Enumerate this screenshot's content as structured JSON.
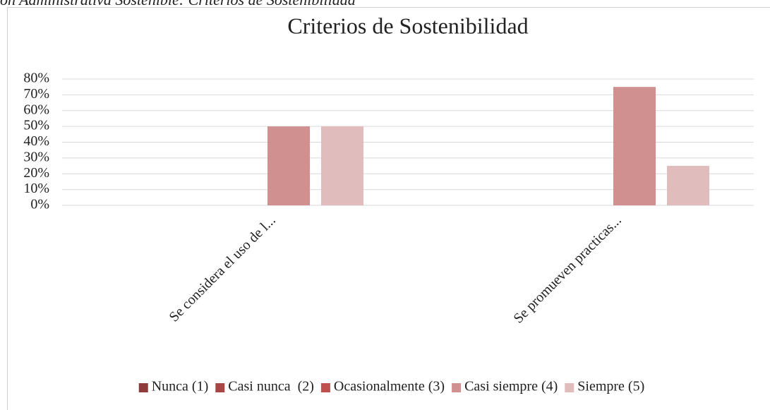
{
  "caption": "ón Administrativa Sostenible: Criterios de Sostenibilidad",
  "chart_data": {
    "type": "bar",
    "title": "Criterios de Sostenibilidad",
    "categories": [
      "Se considera el uso de l...",
      "Se promueven practicas..."
    ],
    "series": [
      {
        "name": "Nunca (1)",
        "color": "#8e3b3b",
        "values": [
          0,
          0
        ]
      },
      {
        "name": "Casi nunca  (2)",
        "color": "#a84545",
        "values": [
          0,
          0
        ]
      },
      {
        "name": "Ocasionalmente (3)",
        "color": "#c0504d",
        "values": [
          0,
          0
        ]
      },
      {
        "name": "Casi siempre (4)",
        "color": "#d09090",
        "values": [
          50,
          75
        ]
      },
      {
        "name": "Siempre (5)",
        "color": "#e0bcbc",
        "values": [
          50,
          25
        ]
      }
    ],
    "ylim": [
      0,
      80
    ],
    "yticks": [
      {
        "value": 0,
        "label": "0%"
      },
      {
        "value": 10,
        "label": "10%"
      },
      {
        "value": 20,
        "label": "20%"
      },
      {
        "value": 30,
        "label": "30%"
      },
      {
        "value": 40,
        "label": "40%"
      },
      {
        "value": 50,
        "label": "50%"
      },
      {
        "value": 60,
        "label": "60%"
      },
      {
        "value": 70,
        "label": "70%"
      },
      {
        "value": 80,
        "label": "80%"
      }
    ],
    "grid": true,
    "legend": "bottom"
  }
}
